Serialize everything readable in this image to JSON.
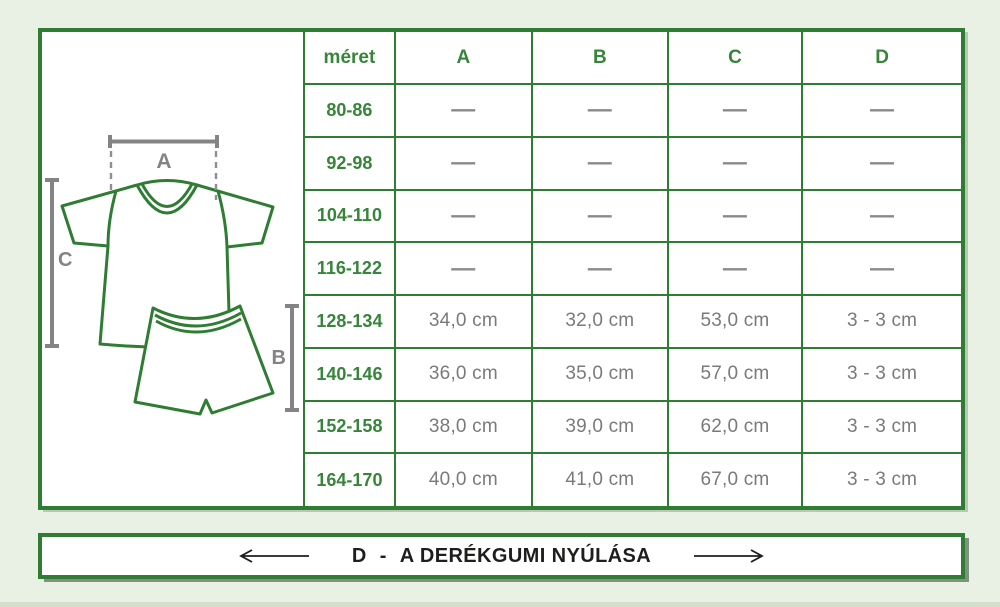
{
  "colors": {
    "accent_green": "#2e7d33",
    "value_gray": "#7a7a7a",
    "background": "#e9f0e4"
  },
  "diagram": {
    "labels": {
      "a": "A",
      "b": "B",
      "c": "C"
    }
  },
  "table": {
    "headers": [
      "méret",
      "A",
      "B",
      "C",
      "D"
    ],
    "rows": [
      {
        "size": "80-86",
        "values": [
          "—",
          "—",
          "—",
          "—"
        ]
      },
      {
        "size": "92-98",
        "values": [
          "—",
          "—",
          "—",
          "—"
        ]
      },
      {
        "size": "104-110",
        "values": [
          "—",
          "—",
          "—",
          "—"
        ]
      },
      {
        "size": "116-122",
        "values": [
          "—",
          "—",
          "—",
          "—"
        ]
      },
      {
        "size": "128-134",
        "values": [
          "34,0 cm",
          "32,0 cm",
          "53,0 cm",
          "3 - 3 cm"
        ]
      },
      {
        "size": "140-146",
        "values": [
          "36,0 cm",
          "35,0 cm",
          "57,0 cm",
          "3 - 3 cm"
        ]
      },
      {
        "size": "152-158",
        "values": [
          "38,0 cm",
          "39,0 cm",
          "62,0 cm",
          "3 - 3 cm"
        ]
      },
      {
        "size": "164-170",
        "values": [
          "40,0 cm",
          "41,0 cm",
          "67,0 cm",
          "3 - 3 cm"
        ]
      }
    ]
  },
  "banner": {
    "prefix": "D",
    "separator": "-",
    "label": "A DERÉKGUMI NYÚLÁSA"
  }
}
